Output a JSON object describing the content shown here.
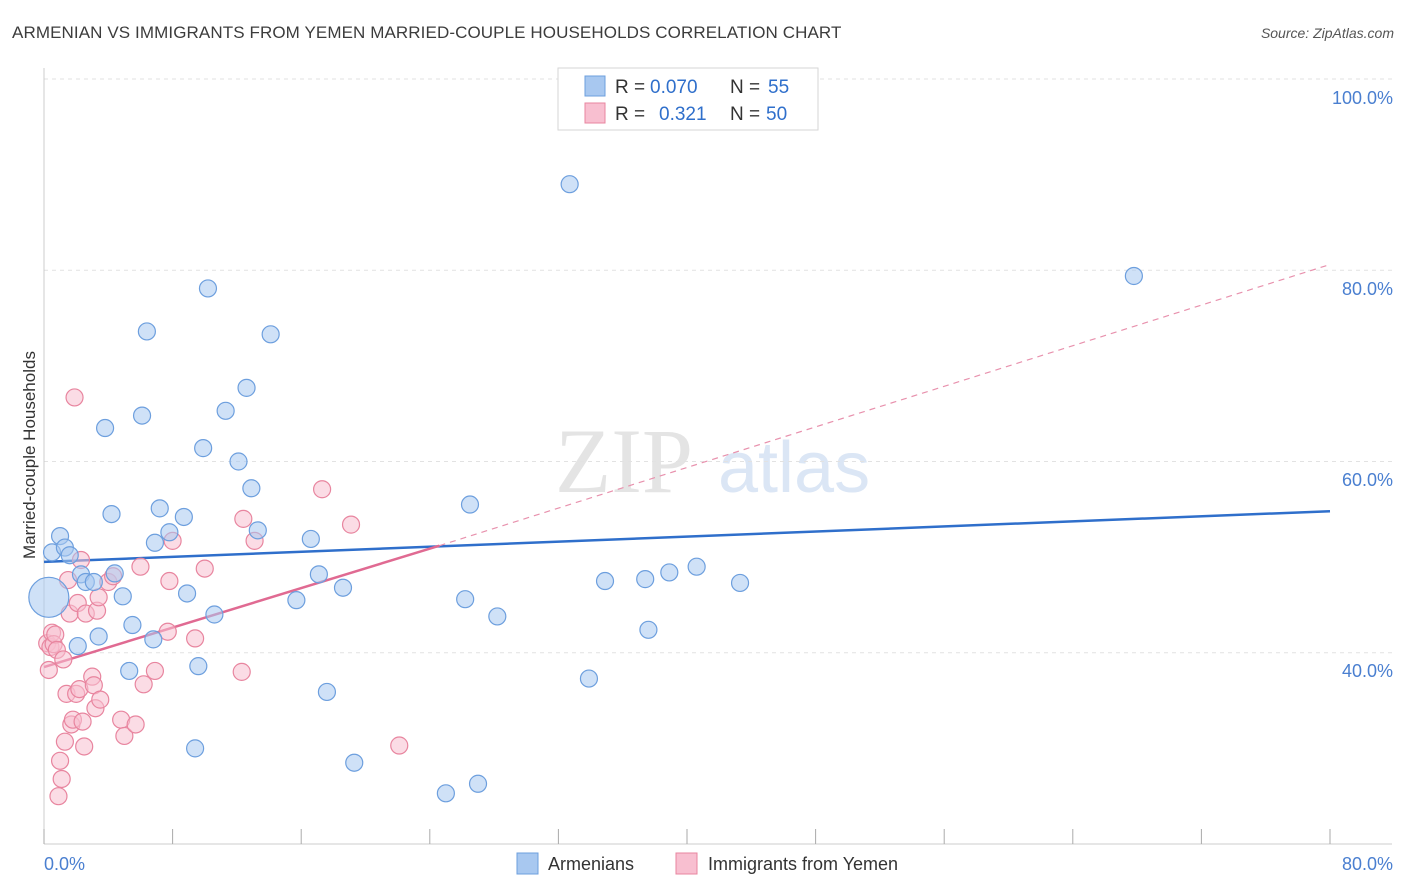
{
  "chart_data": {
    "type": "scatter",
    "title": "ARMENIAN VS IMMIGRANTS FROM YEMEN MARRIED-COUPLE HOUSEHOLDS CORRELATION CHART",
    "source": "Source: ZipAtlas.com",
    "ylabel": "Married-couple Households",
    "xlim": [
      0,
      80
    ],
    "ylim": [
      20,
      100
    ],
    "x_tick_labels": {
      "min": "0.0%",
      "max": "80.0%"
    },
    "y_ticks": [
      {
        "value": 100,
        "label": "100.0%"
      },
      {
        "value": 80,
        "label": "80.0%"
      },
      {
        "value": 60,
        "label": "60.0%"
      },
      {
        "value": 40,
        "label": "40.0%"
      }
    ],
    "watermark": {
      "zip": "ZIP",
      "atlas": "atlas"
    },
    "legend": [
      {
        "r_label": "R =",
        "r_value": "0.070",
        "n_label": "N =",
        "n_value": "55"
      },
      {
        "r_label": "R =",
        "r_value": "0.321",
        "n_label": "N =",
        "n_value": "50"
      }
    ],
    "series": [
      {
        "name": "Armenians",
        "color": "#a8c8f0",
        "stroke": "#6d9fde",
        "line_color": "#2f6fcb",
        "trend": {
          "x0": 0,
          "y0": 49.5,
          "x1": 80,
          "y1": 54.8,
          "dashed_to": null
        },
        "points": [
          [
            0.3,
            45.8
          ],
          [
            0.5,
            50.5
          ],
          [
            1.0,
            52.2
          ],
          [
            1.3,
            51.0
          ],
          [
            1.6,
            50.2
          ],
          [
            2.1,
            40.7
          ],
          [
            2.3,
            48.2
          ],
          [
            2.6,
            47.4
          ],
          [
            3.1,
            47.4
          ],
          [
            3.4,
            41.7
          ],
          [
            3.8,
            63.5
          ],
          [
            4.2,
            54.5
          ],
          [
            4.4,
            48.3
          ],
          [
            4.9,
            45.9
          ],
          [
            5.3,
            38.1
          ],
          [
            5.5,
            42.9
          ],
          [
            6.1,
            64.8
          ],
          [
            6.4,
            73.6
          ],
          [
            6.8,
            41.4
          ],
          [
            6.9,
            51.5
          ],
          [
            7.2,
            55.1
          ],
          [
            7.8,
            52.6
          ],
          [
            8.7,
            54.2
          ],
          [
            8.9,
            46.2
          ],
          [
            9.4,
            30.0
          ],
          [
            9.6,
            38.6
          ],
          [
            9.9,
            61.4
          ],
          [
            10.2,
            78.1
          ],
          [
            10.6,
            44.0
          ],
          [
            11.3,
            65.3
          ],
          [
            12.1,
            60.0
          ],
          [
            12.6,
            67.7
          ],
          [
            12.9,
            57.2
          ],
          [
            13.3,
            52.8
          ],
          [
            14.1,
            73.3
          ],
          [
            15.7,
            45.5
          ],
          [
            16.6,
            51.9
          ],
          [
            17.1,
            48.2
          ],
          [
            17.6,
            35.9
          ],
          [
            18.6,
            46.8
          ],
          [
            19.3,
            28.5
          ],
          [
            25.0,
            25.3
          ],
          [
            26.2,
            45.6
          ],
          [
            26.5,
            55.5
          ],
          [
            27.0,
            26.3
          ],
          [
            28.2,
            43.8
          ],
          [
            32.7,
            89.0
          ],
          [
            33.9,
            37.3
          ],
          [
            34.9,
            47.5
          ],
          [
            37.4,
            47.7
          ],
          [
            37.6,
            42.4
          ],
          [
            38.9,
            48.4
          ],
          [
            40.6,
            49.0
          ],
          [
            43.3,
            47.3
          ],
          [
            67.8,
            79.4
          ]
        ],
        "sizes_note": "first point drawn larger"
      },
      {
        "name": "Immigrants from Yemen",
        "color": "#f8bfd0",
        "stroke": "#e8859f",
        "line_color": "#e06a92",
        "trend": {
          "x0": 0,
          "y0": 38.5,
          "x1": 24.6,
          "y1": 51.2,
          "dashed_x1": 80,
          "dashed_y1": 80.6
        },
        "points": [
          [
            0.2,
            41.0
          ],
          [
            0.3,
            38.2
          ],
          [
            0.4,
            40.6
          ],
          [
            0.5,
            42.1
          ],
          [
            0.6,
            40.9
          ],
          [
            0.7,
            41.9
          ],
          [
            0.8,
            40.3
          ],
          [
            0.9,
            25.0
          ],
          [
            1.0,
            28.7
          ],
          [
            1.1,
            26.8
          ],
          [
            1.2,
            39.3
          ],
          [
            1.3,
            30.7
          ],
          [
            1.4,
            35.7
          ],
          [
            1.5,
            47.6
          ],
          [
            1.6,
            44.1
          ],
          [
            1.7,
            32.5
          ],
          [
            1.8,
            33.0
          ],
          [
            1.9,
            66.7
          ],
          [
            2.0,
            35.7
          ],
          [
            2.1,
            45.2
          ],
          [
            2.2,
            36.2
          ],
          [
            2.3,
            49.7
          ],
          [
            2.4,
            32.8
          ],
          [
            2.5,
            30.2
          ],
          [
            2.6,
            44.1
          ],
          [
            3.0,
            37.5
          ],
          [
            3.1,
            36.6
          ],
          [
            3.2,
            34.2
          ],
          [
            3.3,
            44.4
          ],
          [
            3.4,
            45.8
          ],
          [
            3.5,
            35.1
          ],
          [
            4.0,
            47.4
          ],
          [
            4.3,
            48.0
          ],
          [
            4.8,
            33.0
          ],
          [
            5.0,
            31.3
          ],
          [
            5.7,
            32.5
          ],
          [
            6.0,
            49.0
          ],
          [
            6.2,
            36.7
          ],
          [
            6.9,
            38.1
          ],
          [
            7.7,
            42.2
          ],
          [
            7.8,
            47.5
          ],
          [
            8.0,
            51.7
          ],
          [
            9.4,
            41.5
          ],
          [
            10.0,
            48.8
          ],
          [
            12.3,
            38.0
          ],
          [
            12.4,
            54.0
          ],
          [
            13.1,
            51.7
          ],
          [
            17.3,
            57.1
          ],
          [
            19.1,
            53.4
          ],
          [
            22.1,
            30.3
          ]
        ]
      }
    ]
  },
  "bottom_legend": [
    {
      "label": "Armenians"
    },
    {
      "label": "Immigrants from Yemen"
    }
  ]
}
